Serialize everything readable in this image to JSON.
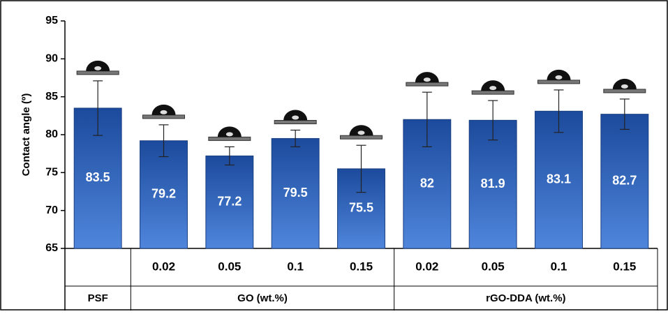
{
  "chart_data": {
    "type": "bar",
    "ylabel": "Contact angle (º)",
    "categories": [
      null,
      "0.02",
      "0.05",
      "0.1",
      "0.15",
      "0.02",
      "0.05",
      "0.1",
      "0.15"
    ],
    "groups": [
      {
        "label": "PSF",
        "span": 1
      },
      {
        "label": "GO (wt.%)",
        "span": 4
      },
      {
        "label": "rGO-DDA (wt.%)",
        "span": 4
      }
    ],
    "values": [
      83.5,
      79.2,
      77.2,
      79.5,
      75.5,
      82,
      81.9,
      83.1,
      82.7
    ],
    "errors": [
      3.6,
      2.1,
      1.2,
      1.1,
      3.1,
      3.6,
      2.6,
      2.8,
      2.0
    ],
    "color": "#2a5db8",
    "ylim": [
      65,
      95
    ],
    "yticks": [
      65,
      70,
      75,
      80,
      85,
      90,
      95
    ]
  }
}
